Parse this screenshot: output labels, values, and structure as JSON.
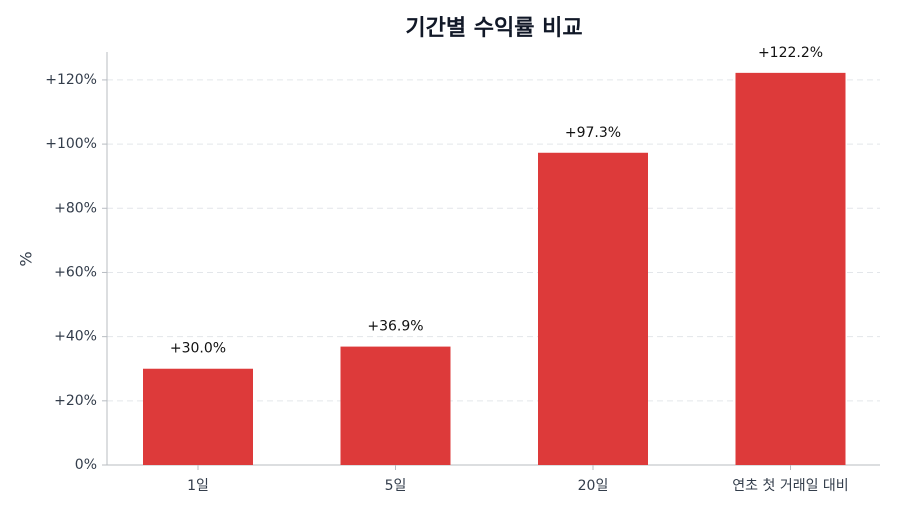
{
  "chart_data": {
    "type": "bar",
    "title": "기간별 수익률 비교",
    "y_label": "%",
    "categories": [
      "1일",
      "5일",
      "20일",
      "연초 첫 거래일 대비"
    ],
    "values": [
      30.0,
      36.9,
      97.3,
      122.2
    ],
    "value_labels": [
      "+30.0%",
      "+36.9%",
      "+97.3%",
      "+122.2%"
    ],
    "color": "#dd3a3a",
    "ylim": [
      0,
      128.7
    ],
    "yticks": [
      {
        "value": 0,
        "label": "0%"
      },
      {
        "value": 20,
        "label": "+20%"
      },
      {
        "value": 40,
        "label": "+40%"
      },
      {
        "value": 60,
        "label": "+60%"
      },
      {
        "value": 80,
        "label": "+80%"
      },
      {
        "value": 100,
        "label": "+100%"
      },
      {
        "value": 120,
        "label": "+120%"
      }
    ],
    "grid": true
  }
}
